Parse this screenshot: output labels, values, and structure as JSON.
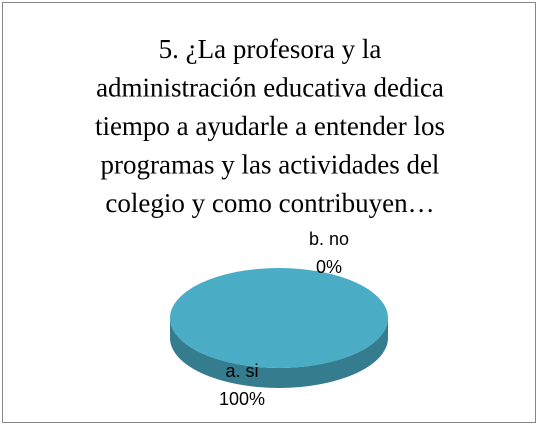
{
  "chart_data": {
    "type": "pie",
    "title": [
      "5. ¿La profesora y la",
      "administración educativa dedica",
      "tiempo a ayudarle a entender los",
      "programas y las actividades del",
      "colegio y como contribuyen…"
    ],
    "categories": [
      "a. si",
      "b. no"
    ],
    "values": [
      100,
      0
    ],
    "value_labels": [
      "100%",
      "0%"
    ],
    "colors": [
      "#4bacc6",
      "#c0504d"
    ]
  }
}
